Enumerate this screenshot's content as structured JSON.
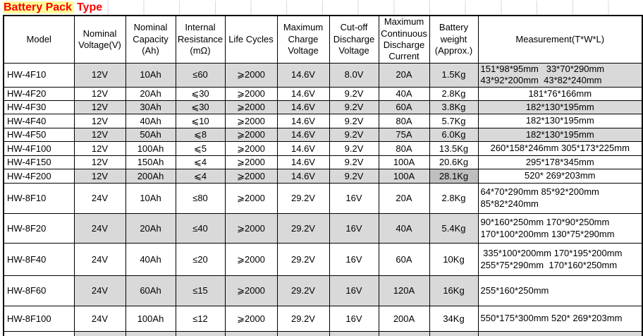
{
  "title": {
    "highlighted_text": "Battery Pack",
    "plain_text": "Type"
  },
  "colors": {
    "title_text": "#ff0000",
    "title_highlight": "#ffff99",
    "row_shade": "#d9d9d9",
    "dark_cell_shade": "#bfbfbf",
    "border": "#000000",
    "gridline": "#d9d9d9"
  },
  "table": {
    "headers": [
      "Model",
      "Nominal\nVoltage(V)",
      "Nominal\nCapacity\n(Ah)",
      "Internal\nResistance\n(mΩ)",
      "Life Cycles",
      "Maximum\nCharge\nVoltage",
      "Cut-off\nDischarge\nVoltage",
      "Maximum\nContinuous\nDischarge\nCurrent",
      "Battery\nweight\n(Approx.)",
      "Measurement(T*W*L)"
    ],
    "rows": [
      {
        "model": "HW-4F10",
        "voltage": "12V",
        "capacity": "10Ah",
        "resistance": "≤60",
        "cycles": "⩾2000",
        "charge": "14.6V",
        "cutoff": "8.0V",
        "current": "20A",
        "weight": "1.5Kg",
        "measurement": "151*98*95mm   33*70*290mm\n43*92*200mm  43*82*240mm",
        "shaded": true,
        "measurement_shaded": true,
        "weight_dark": false,
        "measurement_align": "left"
      },
      {
        "model": "HW-4F20",
        "voltage": "12V",
        "capacity": "20Ah",
        "resistance": "⩽30",
        "cycles": "⩾2000",
        "charge": "14.6V",
        "cutoff": "9.2V",
        "current": "40A",
        "weight": "2.8Kg",
        "measurement": "181*76*166mm",
        "shaded": false,
        "measurement_shaded": false,
        "weight_dark": false,
        "measurement_align": "center"
      },
      {
        "model": "HW-4F30",
        "voltage": "12V",
        "capacity": "30Ah",
        "resistance": "⩽30",
        "cycles": "⩾2000",
        "charge": "14.6V",
        "cutoff": "9.2V",
        "current": "60A",
        "weight": "3.8Kg",
        "measurement": "182*130*195mm",
        "shaded": true,
        "measurement_shaded": true,
        "weight_dark": false,
        "measurement_align": "center"
      },
      {
        "model": "HW-4F40",
        "voltage": "12V",
        "capacity": "40Ah",
        "resistance": "⩽10",
        "cycles": "⩾2000",
        "charge": "14.6V",
        "cutoff": "9.2V",
        "current": "80A",
        "weight": "5.7Kg",
        "measurement": "182*130*195mm",
        "shaded": false,
        "measurement_shaded": false,
        "weight_dark": false,
        "measurement_align": "center"
      },
      {
        "model": "HW-4F50",
        "voltage": "12V",
        "capacity": "50Ah",
        "resistance": "⩽8",
        "cycles": "⩾2000",
        "charge": "14.6V",
        "cutoff": "9.2V",
        "current": "75A",
        "weight": "6.0Kg",
        "measurement": "182*130*195mm",
        "shaded": true,
        "measurement_shaded": true,
        "weight_dark": false,
        "measurement_align": "center"
      },
      {
        "model": "HW-4F100",
        "voltage": "12V",
        "capacity": "100Ah",
        "resistance": "⩽5",
        "cycles": "⩾2000",
        "charge": "14.6V",
        "cutoff": "9.2V",
        "current": "80A",
        "weight": "13.5Kg",
        "measurement": "260*158*246mm 305*173*225mm",
        "shaded": false,
        "measurement_shaded": false,
        "weight_dark": false,
        "measurement_align": "center"
      },
      {
        "model": "HW-4F150",
        "voltage": "12V",
        "capacity": "150Ah",
        "resistance": "⩽4",
        "cycles": "⩾2000",
        "charge": "14.6V",
        "cutoff": "9.2V",
        "current": "100A",
        "weight": "20.6Kg",
        "measurement": "295*178*345mm",
        "shaded": false,
        "measurement_shaded": false,
        "weight_dark": false,
        "measurement_align": "center"
      },
      {
        "model": "HW-4F200",
        "voltage": "12V",
        "capacity": "200Ah",
        "resistance": "⩽4",
        "cycles": "⩾2000",
        "charge": "14.6V",
        "cutoff": "9.2V",
        "current": "100A",
        "weight": "28.1Kg",
        "measurement": "520* 269*203mm",
        "shaded": true,
        "measurement_shaded": false,
        "weight_dark": true,
        "measurement_align": "center"
      },
      {
        "model": "HW-8F10",
        "voltage": "24V",
        "capacity": "10Ah",
        "resistance": "≤80",
        "cycles": "⩾2000",
        "charge": "29.2V",
        "cutoff": "16V",
        "current": "20A",
        "weight": "2.8Kg",
        "measurement": "64*70*290mm 85*92*200mm\n85*82*240mm",
        "shaded": false,
        "measurement_shaded": false,
        "weight_dark": false,
        "measurement_align": "left"
      },
      {
        "model": "HW-8F20",
        "voltage": "24V",
        "capacity": "20Ah",
        "resistance": "≤40",
        "cycles": "⩾2000",
        "charge": "29.2V",
        "cutoff": "16V",
        "current": "40A",
        "weight": "5.4Kg",
        "measurement": "90*160*250mm 170*90*250mm\n170*100*200mm 130*75*290mm",
        "shaded": true,
        "measurement_shaded": false,
        "weight_dark": false,
        "measurement_align": "left"
      },
      {
        "model": "HW-8F40",
        "voltage": "24V",
        "capacity": "40Ah",
        "resistance": "≤20",
        "cycles": "⩾2000",
        "charge": "29.2V",
        "cutoff": "16V",
        "current": "60A",
        "weight": "10Kg",
        "measurement": " 335*100*200mm 170*195*200mm\n255*75*290mm  170*160*250mm",
        "shaded": false,
        "measurement_shaded": false,
        "weight_dark": false,
        "measurement_align": "left"
      },
      {
        "model": "HW-8F60",
        "voltage": "24V",
        "capacity": "60Ah",
        "resistance": "≤15",
        "cycles": "⩾2000",
        "charge": "29.2V",
        "cutoff": "16V",
        "current": "120A",
        "weight": "16Kg",
        "measurement": "255*160*250mm",
        "shaded": true,
        "measurement_shaded": false,
        "weight_dark": false,
        "measurement_align": "left"
      },
      {
        "model": "HW-8F100",
        "voltage": "24V",
        "capacity": "100Ah",
        "resistance": "≤12",
        "cycles": "⩾2000",
        "charge": "29.2V",
        "cutoff": "16V",
        "current": "200A",
        "weight": "34Kg",
        "measurement": "550*175*300mm 520* 269*203mm",
        "shaded": false,
        "measurement_shaded": false,
        "weight_dark": false,
        "measurement_align": "left"
      },
      {
        "model": "",
        "voltage": "",
        "capacity": "",
        "resistance": "",
        "cycles": "",
        "charge": "",
        "cutoff": "",
        "current": "",
        "weight": "",
        "measurement": "",
        "shaded": true,
        "measurement_shaded": true,
        "weight_dark": false,
        "measurement_align": "center"
      }
    ]
  }
}
